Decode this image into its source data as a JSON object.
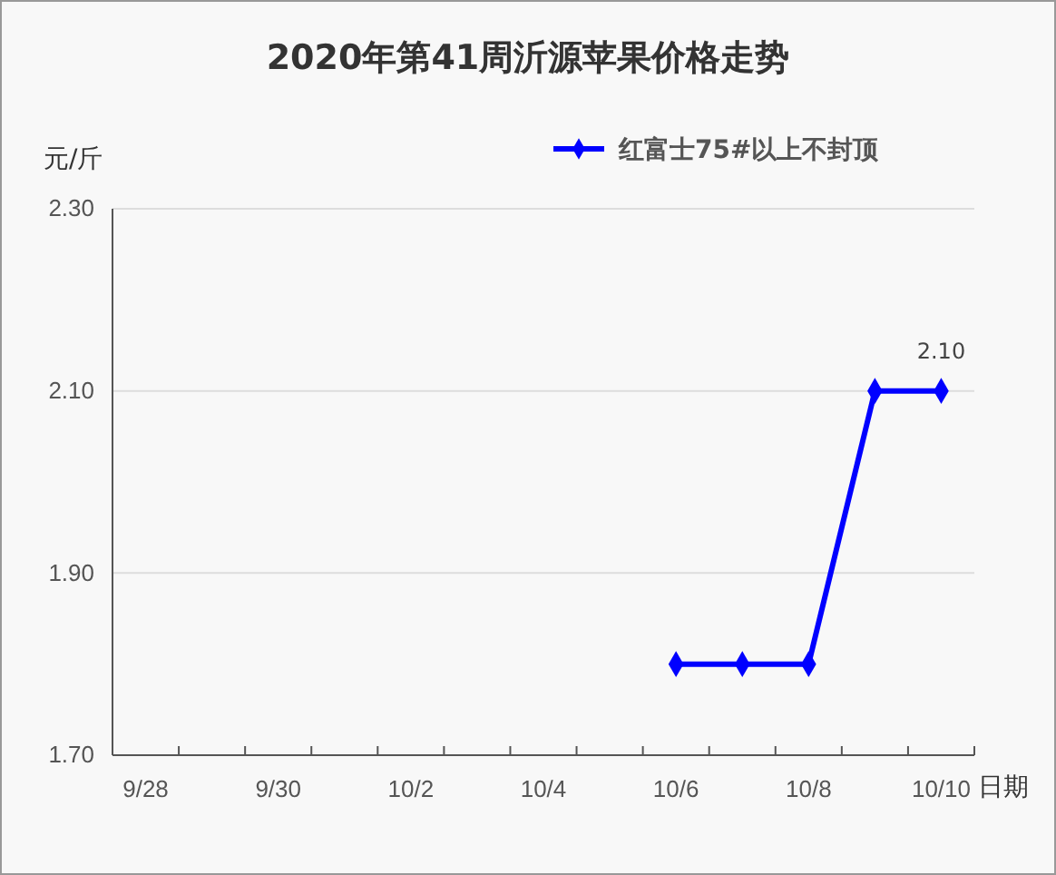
{
  "chart_data": {
    "type": "line",
    "title": "2020年第41周沂源苹果价格走势",
    "xlabel": "日期",
    "ylabel": "元/斤",
    "categories": [
      "9/28",
      null,
      "9/30",
      null,
      "10/2",
      null,
      "10/4",
      null,
      "10/6",
      null,
      "10/8",
      null,
      "10/10"
    ],
    "series": [
      {
        "name": "红富士75#以上不封顶",
        "color": "#0000ff",
        "values": [
          null,
          null,
          null,
          null,
          null,
          null,
          null,
          null,
          1.8,
          1.8,
          1.8,
          2.1,
          2.1
        ],
        "value_labels": [
          null,
          null,
          null,
          null,
          null,
          null,
          null,
          null,
          null,
          null,
          null,
          null,
          "2.10"
        ]
      }
    ],
    "ylim": [
      1.7,
      2.3
    ],
    "yticks": [
      {
        "value": 1.7,
        "label": "1.70"
      },
      {
        "value": 1.9,
        "label": "1.90"
      },
      {
        "value": 2.1,
        "label": "2.10"
      },
      {
        "value": 2.3,
        "label": "2.30"
      }
    ],
    "grid": "y",
    "legend": "top right",
    "marker": "diamond",
    "line_style": "solid"
  }
}
